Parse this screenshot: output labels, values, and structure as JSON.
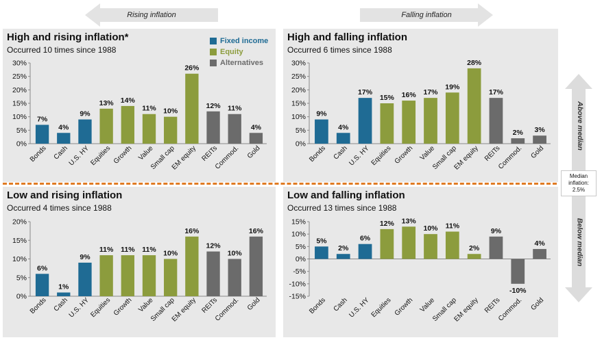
{
  "header": {
    "rising_label": "Rising inflation",
    "falling_label": "Falling inflation"
  },
  "legend": {
    "items": [
      {
        "label": "Fixed income",
        "color": "#1f6b94"
      },
      {
        "label": "Equity",
        "color": "#8c9c3d"
      },
      {
        "label": "Alternatives",
        "color": "#6b6b6b"
      }
    ]
  },
  "side": {
    "above_label": "Above median",
    "below_label": "Below median",
    "median_line1": "Median",
    "median_line2": "inflation:",
    "median_line3": "2.5%"
  },
  "colors": {
    "fixed_income": "#1f6b94",
    "equity": "#8c9c3d",
    "alternatives": "#6b6b6b",
    "panel_bg": "#e8e8e8",
    "divider": "#e07b24"
  },
  "chart_data": [
    {
      "type": "bar",
      "title": "High and rising inflation*",
      "subtitle": "Occurred 10 times since 1988",
      "categories": [
        "Bonds",
        "Cash",
        "U.S. HY",
        "Equities",
        "Growth",
        "Value",
        "Small cap",
        "EM equity",
        "REITs",
        "Commod.",
        "Gold"
      ],
      "groups": [
        "Fixed income",
        "Fixed income",
        "Fixed income",
        "Equity",
        "Equity",
        "Equity",
        "Equity",
        "Equity",
        "Alternatives",
        "Alternatives",
        "Alternatives"
      ],
      "values": [
        7,
        4,
        9,
        13,
        14,
        11,
        10,
        26,
        12,
        11,
        4
      ],
      "data_labels": [
        "7%",
        "4%",
        "9%",
        "13%",
        "14%",
        "11%",
        "10%",
        "26%",
        "12%",
        "11%",
        "4%"
      ],
      "ylim": [
        0,
        30
      ],
      "yticks": [
        0,
        5,
        10,
        15,
        20,
        25,
        30
      ],
      "ytick_labels": [
        "0%",
        "5%",
        "10%",
        "15%",
        "20%",
        "25%",
        "30%"
      ]
    },
    {
      "type": "bar",
      "title": "High and falling inflation",
      "subtitle": "Occurred 6 times since 1988",
      "categories": [
        "Bonds",
        "Cash",
        "U.S. HY",
        "Equities",
        "Growth",
        "Value",
        "Small cap",
        "EM equity",
        "REITs",
        "Commod.",
        "Gold"
      ],
      "groups": [
        "Fixed income",
        "Fixed income",
        "Fixed income",
        "Equity",
        "Equity",
        "Equity",
        "Equity",
        "Equity",
        "Alternatives",
        "Alternatives",
        "Alternatives"
      ],
      "values": [
        9,
        4,
        17,
        15,
        16,
        17,
        19,
        28,
        17,
        2,
        3
      ],
      "data_labels": [
        "9%",
        "4%",
        "17%",
        "15%",
        "16%",
        "17%",
        "19%",
        "28%",
        "17%",
        "2%",
        "3%"
      ],
      "ylim": [
        0,
        30
      ],
      "yticks": [
        0,
        5,
        10,
        15,
        20,
        25,
        30
      ],
      "ytick_labels": [
        "0%",
        "5%",
        "10%",
        "15%",
        "20%",
        "25%",
        "30%"
      ]
    },
    {
      "type": "bar",
      "title": "Low and rising inflation",
      "subtitle": "Occurred 4 times since 1988",
      "categories": [
        "Bonds",
        "Cash",
        "U.S. HY",
        "Equities",
        "Growth",
        "Value",
        "Small cap",
        "EM equity",
        "REITs",
        "Commod.",
        "Gold"
      ],
      "groups": [
        "Fixed income",
        "Fixed income",
        "Fixed income",
        "Equity",
        "Equity",
        "Equity",
        "Equity",
        "Equity",
        "Alternatives",
        "Alternatives",
        "Alternatives"
      ],
      "values": [
        6,
        1,
        9,
        11,
        11,
        11,
        10,
        16,
        12,
        10,
        16
      ],
      "data_labels": [
        "6%",
        "1%",
        "9%",
        "11%",
        "11%",
        "11%",
        "10%",
        "16%",
        "12%",
        "10%",
        "16%"
      ],
      "ylim": [
        0,
        20
      ],
      "yticks": [
        0,
        5,
        10,
        15,
        20
      ],
      "ytick_labels": [
        "0%",
        "5%",
        "10%",
        "15%",
        "20%"
      ]
    },
    {
      "type": "bar",
      "title": "Low and falling inflation",
      "subtitle": "Occurred 13 times since 1988",
      "categories": [
        "Bonds",
        "Cash",
        "U.S. HY",
        "Equities",
        "Growth",
        "Value",
        "Small cap",
        "EM equity",
        "REITs",
        "Commod.",
        "Gold"
      ],
      "groups": [
        "Fixed income",
        "Fixed income",
        "Fixed income",
        "Equity",
        "Equity",
        "Equity",
        "Equity",
        "Equity",
        "Alternatives",
        "Alternatives",
        "Alternatives"
      ],
      "values": [
        5,
        2,
        6,
        12,
        13,
        10,
        11,
        2,
        9,
        -10,
        4
      ],
      "data_labels": [
        "5%",
        "2%",
        "6%",
        "12%",
        "13%",
        "10%",
        "11%",
        "2%",
        "9%",
        "-10%",
        "4%"
      ],
      "ylim": [
        -15,
        15
      ],
      "yticks": [
        -15,
        -10,
        -5,
        0,
        5,
        10,
        15
      ],
      "ytick_labels": [
        "-15%",
        "-10%",
        "-5%",
        "0%",
        "5%",
        "10%",
        "15%"
      ]
    }
  ]
}
